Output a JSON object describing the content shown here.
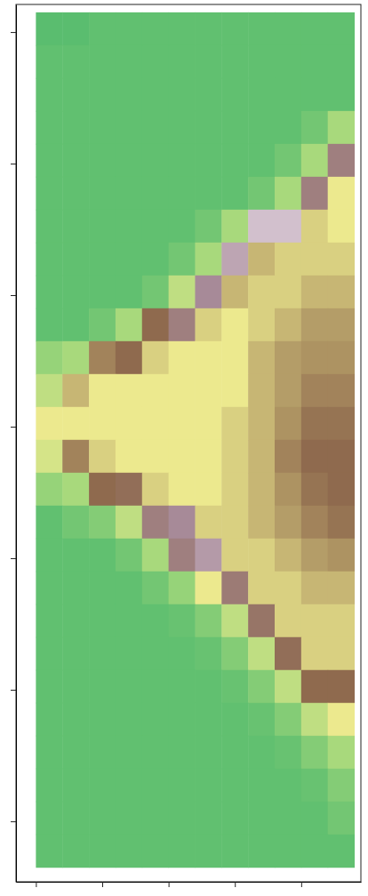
{
  "chart_data": {
    "type": "heatmap",
    "xlim": [
      -0.3,
      4.9
    ],
    "ylim": [
      -3.46,
      3.21
    ],
    "xticks": [
      0,
      1,
      2,
      3,
      4
    ],
    "yticks": [
      -3,
      -2,
      -1,
      0,
      1,
      2,
      3
    ],
    "tick_labels": false,
    "zlim": [
      0,
      1
    ],
    "x_edges": [
      0,
      0.4,
      0.8,
      1.2,
      1.6,
      2,
      2.4,
      2.8,
      3.2,
      3.6,
      4,
      4.4,
      4.8
    ],
    "y_edges": [
      3.15,
      2.9,
      2.65,
      2.4,
      2.15,
      1.9,
      1.65,
      1.4,
      1.15,
      0.9,
      0.65,
      0.4,
      0.15,
      -0.1,
      -0.35,
      -0.6,
      -0.85,
      -1.1,
      -1.35,
      -1.6,
      -1.85,
      -2.1,
      -2.35,
      -2.6,
      -2.85,
      -3.1,
      -3.35
    ],
    "z": [
      [
        0.08,
        0.08,
        0.1,
        0.1,
        0.1,
        0.1,
        0.1,
        0.1,
        0.1,
        0.1,
        0.1,
        0.1
      ],
      [
        0.1,
        0.1,
        0.1,
        0.1,
        0.1,
        0.1,
        0.1,
        0.1,
        0.1,
        0.1,
        0.1,
        0.1
      ],
      [
        0.1,
        0.1,
        0.1,
        0.1,
        0.1,
        0.1,
        0.1,
        0.1,
        0.1,
        0.1,
        0.1,
        0.1
      ],
      [
        0.1,
        0.1,
        0.1,
        0.1,
        0.1,
        0.1,
        0.1,
        0.1,
        0.1,
        0.1,
        0.15,
        0.3
      ],
      [
        0.1,
        0.1,
        0.1,
        0.1,
        0.1,
        0.1,
        0.1,
        0.1,
        0.1,
        0.15,
        0.3,
        0.8
      ],
      [
        0.1,
        0.1,
        0.1,
        0.1,
        0.1,
        0.1,
        0.1,
        0.1,
        0.15,
        0.3,
        0.8,
        0.45
      ],
      [
        0.1,
        0.1,
        0.1,
        0.1,
        0.1,
        0.1,
        0.15,
        0.3,
        0.95,
        0.95,
        0.5,
        0.45
      ],
      [
        0.1,
        0.1,
        0.1,
        0.1,
        0.1,
        0.15,
        0.3,
        0.9,
        0.55,
        0.5,
        0.5,
        0.5
      ],
      [
        0.1,
        0.1,
        0.1,
        0.1,
        0.15,
        0.35,
        0.85,
        0.55,
        0.5,
        0.5,
        0.55,
        0.55
      ],
      [
        0.1,
        0.1,
        0.15,
        0.3,
        0.7,
        0.8,
        0.5,
        0.45,
        0.5,
        0.55,
        0.6,
        0.6
      ],
      [
        0.25,
        0.3,
        0.65,
        0.7,
        0.5,
        0.45,
        0.45,
        0.45,
        0.55,
        0.6,
        0.62,
        0.62
      ],
      [
        0.35,
        0.55,
        0.45,
        0.45,
        0.45,
        0.45,
        0.45,
        0.45,
        0.55,
        0.6,
        0.65,
        0.65
      ],
      [
        0.45,
        0.45,
        0.45,
        0.45,
        0.45,
        0.45,
        0.45,
        0.5,
        0.55,
        0.62,
        0.68,
        0.68
      ],
      [
        0.4,
        0.65,
        0.5,
        0.45,
        0.45,
        0.45,
        0.45,
        0.5,
        0.55,
        0.65,
        0.7,
        0.7
      ],
      [
        0.25,
        0.3,
        0.7,
        0.72,
        0.5,
        0.45,
        0.45,
        0.5,
        0.55,
        0.62,
        0.68,
        0.7
      ],
      [
        0.1,
        0.15,
        0.2,
        0.35,
        0.8,
        0.85,
        0.5,
        0.5,
        0.55,
        0.6,
        0.65,
        0.68
      ],
      [
        0.1,
        0.1,
        0.1,
        0.15,
        0.3,
        0.8,
        0.88,
        0.5,
        0.5,
        0.55,
        0.6,
        0.62
      ],
      [
        0.1,
        0.1,
        0.1,
        0.1,
        0.15,
        0.25,
        0.45,
        0.78,
        0.5,
        0.5,
        0.55,
        0.55
      ],
      [
        0.1,
        0.1,
        0.1,
        0.1,
        0.1,
        0.12,
        0.2,
        0.35,
        0.75,
        0.5,
        0.5,
        0.5
      ],
      [
        0.1,
        0.1,
        0.1,
        0.1,
        0.1,
        0.1,
        0.12,
        0.2,
        0.35,
        0.72,
        0.5,
        0.5
      ],
      [
        0.1,
        0.1,
        0.1,
        0.1,
        0.1,
        0.1,
        0.1,
        0.12,
        0.2,
        0.35,
        0.7,
        0.7
      ],
      [
        0.1,
        0.1,
        0.1,
        0.1,
        0.1,
        0.1,
        0.1,
        0.1,
        0.12,
        0.2,
        0.35,
        0.45
      ],
      [
        0.1,
        0.1,
        0.1,
        0.1,
        0.1,
        0.1,
        0.1,
        0.1,
        0.1,
        0.12,
        0.2,
        0.3
      ],
      [
        0.1,
        0.1,
        0.1,
        0.1,
        0.1,
        0.1,
        0.1,
        0.1,
        0.1,
        0.1,
        0.12,
        0.2
      ],
      [
        0.1,
        0.1,
        0.1,
        0.1,
        0.1,
        0.1,
        0.1,
        0.1,
        0.1,
        0.1,
        0.1,
        0.15
      ],
      [
        0.1,
        0.1,
        0.1,
        0.1,
        0.1,
        0.1,
        0.1,
        0.1,
        0.1,
        0.1,
        0.1,
        0.1
      ]
    ]
  }
}
